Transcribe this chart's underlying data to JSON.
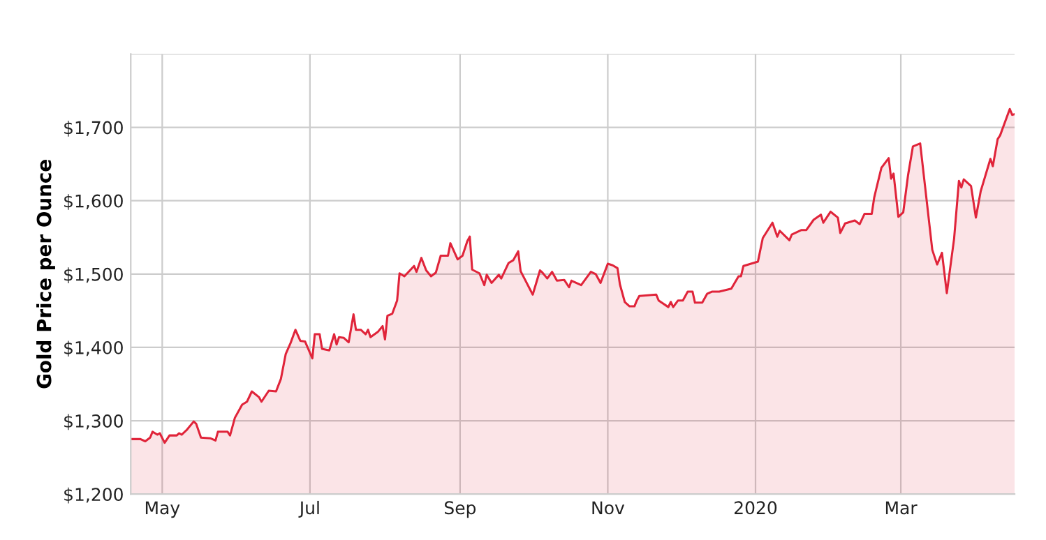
{
  "chart_data": {
    "type": "area",
    "ylabel": "Gold Price per Ounce",
    "xlim": [
      "2019-04-18",
      "2020-04-17"
    ],
    "ylim": [
      1200,
      1800
    ],
    "yticks": [
      {
        "value": 1200,
        "label": "$1,200"
      },
      {
        "value": 1300,
        "label": "$1,300"
      },
      {
        "value": 1400,
        "label": "$1,400"
      },
      {
        "value": 1500,
        "label": "$1,500"
      },
      {
        "value": 1600,
        "label": "$1,600"
      },
      {
        "value": 1700,
        "label": "$1,700"
      },
      {
        "value": 1800,
        "label": null
      }
    ],
    "xticks": [
      {
        "value": "2019-05-01",
        "label": "May"
      },
      {
        "value": "2019-07-01",
        "label": "Jul"
      },
      {
        "value": "2019-09-01",
        "label": "Sep"
      },
      {
        "value": "2019-11-01",
        "label": "Nov"
      },
      {
        "value": "2020-01-01",
        "label": "2020"
      },
      {
        "value": "2020-03-01",
        "label": "Mar"
      }
    ],
    "grid": true,
    "x": [
      "2019-04-18",
      "2019-04-22",
      "2019-04-24",
      "2019-04-26",
      "2019-04-27",
      "2019-04-29",
      "2019-04-30",
      "2019-05-02",
      "2019-05-04",
      "2019-05-07",
      "2019-05-08",
      "2019-05-09",
      "2019-05-11",
      "2019-05-14",
      "2019-05-15",
      "2019-05-17",
      "2019-05-21",
      "2019-05-23",
      "2019-05-24",
      "2019-05-28",
      "2019-05-29",
      "2019-05-31",
      "2019-06-03",
      "2019-06-05",
      "2019-06-07",
      "2019-06-10",
      "2019-06-11",
      "2019-06-14",
      "2019-06-17",
      "2019-06-19",
      "2019-06-21",
      "2019-06-23",
      "2019-06-25",
      "2019-06-27",
      "2019-06-29",
      "2019-07-02",
      "2019-07-03",
      "2019-07-05",
      "2019-07-06",
      "2019-07-09",
      "2019-07-11",
      "2019-07-12",
      "2019-07-13",
      "2019-07-15",
      "2019-07-17",
      "2019-07-19",
      "2019-07-20",
      "2019-07-22",
      "2019-07-24",
      "2019-07-25",
      "2019-07-26",
      "2019-07-29",
      "2019-07-31",
      "2019-08-01",
      "2019-08-02",
      "2019-08-04",
      "2019-08-06",
      "2019-08-07",
      "2019-08-09",
      "2019-08-13",
      "2019-08-14",
      "2019-08-16",
      "2019-08-18",
      "2019-08-20",
      "2019-08-22",
      "2019-08-24",
      "2019-08-27",
      "2019-08-28",
      "2019-08-31",
      "2019-09-02",
      "2019-09-04",
      "2019-09-05",
      "2019-09-06",
      "2019-09-09",
      "2019-09-11",
      "2019-09-12",
      "2019-09-14",
      "2019-09-17",
      "2019-09-18",
      "2019-09-21",
      "2019-09-23",
      "2019-09-25",
      "2019-09-26",
      "2019-10-01",
      "2019-10-04",
      "2019-10-05",
      "2019-10-07",
      "2019-10-09",
      "2019-10-11",
      "2019-10-14",
      "2019-10-16",
      "2019-10-17",
      "2019-10-21",
      "2019-10-25",
      "2019-10-27",
      "2019-10-29",
      "2019-11-01",
      "2019-11-03",
      "2019-11-05",
      "2019-11-06",
      "2019-11-08",
      "2019-11-10",
      "2019-11-12",
      "2019-11-13",
      "2019-11-14",
      "2019-11-21",
      "2019-11-22",
      "2019-11-26",
      "2019-11-27",
      "2019-11-28",
      "2019-11-30",
      "2019-12-02",
      "2019-12-04",
      "2019-12-06",
      "2019-12-07",
      "2019-12-10",
      "2019-12-12",
      "2019-12-14",
      "2019-12-17",
      "2019-12-22",
      "2019-12-25",
      "2019-12-26",
      "2019-12-27",
      "2020-01-02",
      "2020-01-04",
      "2020-01-08",
      "2020-01-10",
      "2020-01-11",
      "2020-01-15",
      "2020-01-16",
      "2020-01-20",
      "2020-01-22",
      "2020-01-25",
      "2020-01-28",
      "2020-01-29",
      "2020-02-01",
      "2020-02-04",
      "2020-02-05",
      "2020-02-07",
      "2020-02-11",
      "2020-02-13",
      "2020-02-15",
      "2020-02-18",
      "2020-02-19",
      "2020-02-20",
      "2020-02-22",
      "2020-02-25",
      "2020-02-26",
      "2020-02-27",
      "2020-02-29",
      "2020-03-02",
      "2020-03-04",
      "2020-03-06",
      "2020-03-09",
      "2020-03-11",
      "2020-03-14",
      "2020-03-16",
      "2020-03-18",
      "2020-03-20",
      "2020-03-23",
      "2020-03-25",
      "2020-03-26",
      "2020-03-27",
      "2020-03-30",
      "2020-04-01",
      "2020-04-03",
      "2020-04-07",
      "2020-04-08",
      "2020-04-10",
      "2020-04-11",
      "2020-04-15",
      "2020-04-16",
      "2020-04-17"
    ],
    "series": [
      {
        "color": "#e0243a",
        "values": [
          1275,
          1275,
          1272,
          1277,
          1285,
          1281,
          1283,
          1270,
          1280,
          1280,
          1283,
          1281,
          1287,
          1299,
          1296,
          1277,
          1276,
          1273,
          1285,
          1285,
          1280,
          1304,
          1322,
          1326,
          1340,
          1332,
          1326,
          1341,
          1340,
          1357,
          1391,
          1406,
          1424,
          1409,
          1408,
          1385,
          1418,
          1418,
          1398,
          1396,
          1418,
          1404,
          1414,
          1413,
          1407,
          1445,
          1424,
          1424,
          1418,
          1424,
          1414,
          1421,
          1429,
          1411,
          1443,
          1446,
          1464,
          1501,
          1497,
          1511,
          1503,
          1522,
          1505,
          1497,
          1502,
          1525,
          1525,
          1542,
          1520,
          1525,
          1545,
          1551,
          1506,
          1501,
          1485,
          1499,
          1488,
          1499,
          1494,
          1515,
          1519,
          1531,
          1504,
          1472,
          1505,
          1502,
          1494,
          1503,
          1491,
          1492,
          1482,
          1491,
          1485,
          1503,
          1500,
          1488,
          1514,
          1512,
          1508,
          1486,
          1462,
          1456,
          1456,
          1464,
          1470,
          1472,
          1464,
          1455,
          1462,
          1455,
          1464,
          1464,
          1476,
          1476,
          1461,
          1461,
          1473,
          1476,
          1476,
          1480,
          1497,
          1497,
          1511,
          1517,
          1549,
          1570,
          1551,
          1559,
          1546,
          1554,
          1560,
          1560,
          1574,
          1581,
          1570,
          1585,
          1577,
          1556,
          1569,
          1573,
          1568,
          1582,
          1582,
          1604,
          1618,
          1645,
          1658,
          1630,
          1637,
          1578,
          1584,
          1635,
          1674,
          1678,
          1620,
          1533,
          1513,
          1529,
          1474,
          1548,
          1627,
          1618,
          1629,
          1620,
          1577,
          1613,
          1657,
          1647,
          1684,
          1689,
          1725,
          1717,
          1718
        ]
      }
    ]
  }
}
